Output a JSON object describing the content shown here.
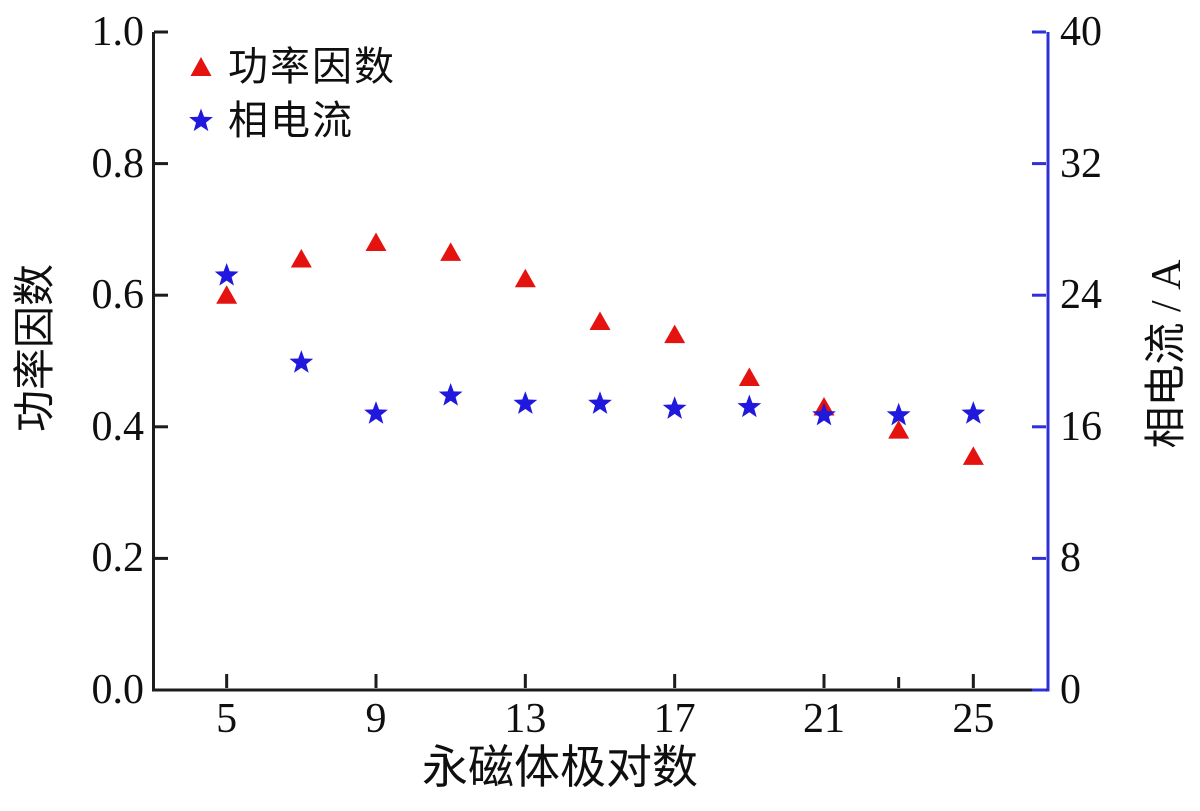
{
  "chart_data": {
    "type": "scatter",
    "title": "",
    "x_label": "永磁体极对数",
    "y_left_label": "功率因数",
    "y_right_label": "相电流 / A",
    "x": [
      5,
      7,
      9,
      11,
      13,
      15,
      17,
      19,
      21,
      23,
      25
    ],
    "series": [
      {
        "name": "功率因数",
        "axis": "left",
        "marker": "triangle",
        "color": "#e51310",
        "values": [
          0.6,
          0.655,
          0.68,
          0.665,
          0.625,
          0.56,
          0.54,
          0.475,
          0.43,
          0.395,
          0.355
        ]
      },
      {
        "name": "相电流",
        "axis": "right",
        "marker": "star",
        "color": "#2018dd",
        "values": [
          25.2,
          19.9,
          16.8,
          17.9,
          17.4,
          17.4,
          17.1,
          17.2,
          16.7,
          16.7,
          16.8
        ]
      }
    ],
    "xlim": [
      3,
      27
    ],
    "ylim_left": [
      0.0,
      1.0
    ],
    "ylim_right": [
      0,
      40
    ],
    "x_tick_labels": [
      "5",
      "9",
      "13",
      "17",
      "21",
      "25"
    ],
    "x_minor_ticks": [
      23
    ],
    "left_tick_labels": [
      "0.0",
      "0.2",
      "0.4",
      "0.6",
      "0.8",
      "1.0"
    ],
    "right_tick_labels": [
      "0",
      "8",
      "16",
      "24",
      "32",
      "40"
    ],
    "legend": {
      "position": "top-left"
    },
    "grid": false,
    "colors": {
      "left_axis": "#1c1c1c",
      "bottom_axis": "#1c1c1c",
      "right_axis": "#3030d8",
      "tick_text": "#0f0f0f"
    }
  }
}
